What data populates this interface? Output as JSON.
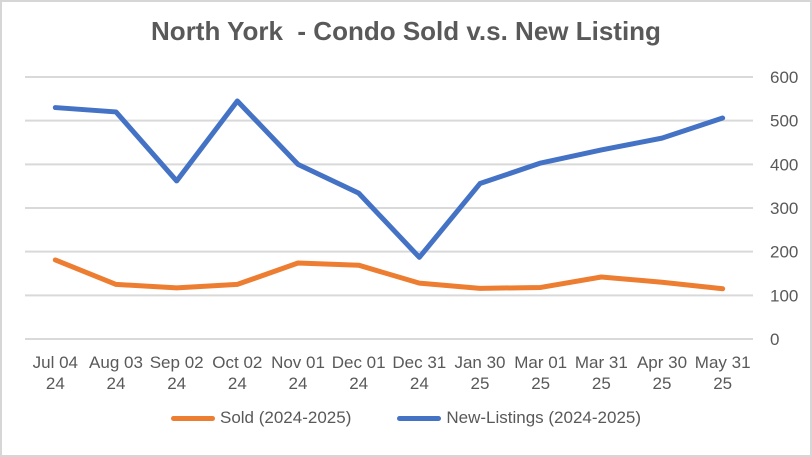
{
  "title": "North York  - Condo Sold v.s. New Listing",
  "colors": {
    "sold": "#ED7D31",
    "new_listings": "#4472C4",
    "grid": "#D9D9D9",
    "text": "#595959",
    "border": "#D6D6D6"
  },
  "chart_data": {
    "type": "line",
    "title": "North York  - Condo Sold v.s. New Listing",
    "categories": [
      [
        "Jul 04",
        "24"
      ],
      [
        "Aug 03",
        "24"
      ],
      [
        "Sep 02",
        "24"
      ],
      [
        "Oct 02",
        "24"
      ],
      [
        "Nov 01",
        "24"
      ],
      [
        "Dec 01",
        "24"
      ],
      [
        "Dec 31",
        "24"
      ],
      [
        "Jan 30",
        "25"
      ],
      [
        "Mar 01",
        "25"
      ],
      [
        "Mar 31",
        "25"
      ],
      [
        "Apr 30",
        "25"
      ],
      [
        "May 31",
        "25"
      ]
    ],
    "series": [
      {
        "name": "Sold (2024-2025)",
        "color": "#ED7D31",
        "values": [
          181,
          125,
          117,
          125,
          174,
          169,
          128,
          116,
          118,
          142,
          130,
          115
        ]
      },
      {
        "name": "New-Listings (2024-2025)",
        "color": "#4472C4",
        "values": [
          530,
          520,
          362,
          545,
          400,
          334,
          187,
          356,
          403,
          433,
          460,
          506
        ]
      }
    ],
    "y_axis": {
      "min": 0,
      "max": 600,
      "step": 100,
      "ticks": [
        0,
        100,
        200,
        300,
        400,
        500,
        600
      ],
      "position": "right"
    },
    "xlabel": "",
    "ylabel": "",
    "grid": true,
    "legend_position": "bottom"
  }
}
